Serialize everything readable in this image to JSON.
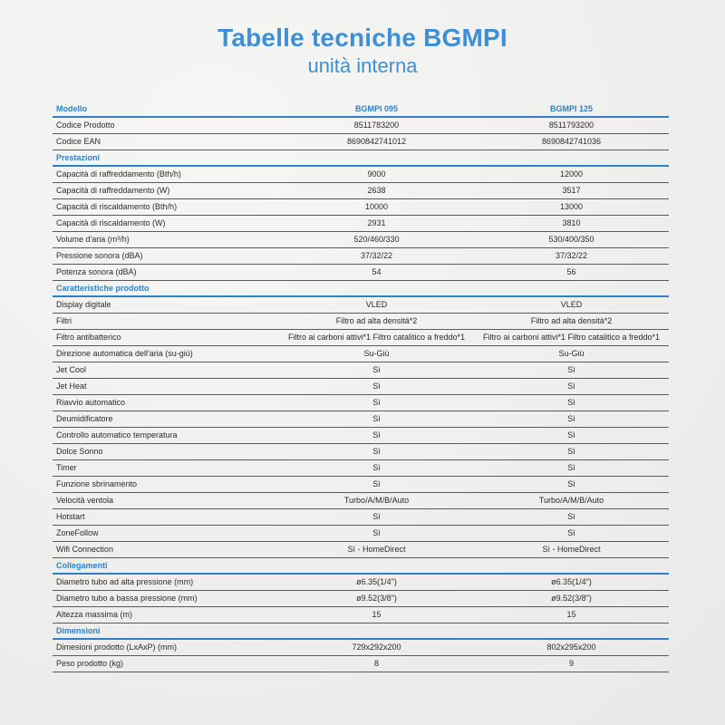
{
  "header": {
    "title": "Tabelle tecniche BGMPI",
    "subtitle": "unità interna"
  },
  "table": {
    "columns": [
      "Modello",
      "BGMPI 095",
      "BGMPI 125"
    ],
    "sections": [
      {
        "title": "",
        "rows": [
          {
            "label": "Codice Prodotto",
            "values": [
              "8511783200",
              "8511793200"
            ]
          },
          {
            "label": "Codice EAN",
            "values": [
              "8690842741012",
              "8690842741036"
            ]
          }
        ]
      },
      {
        "title": "Prestazioni",
        "rows": [
          {
            "label": "Capacità di raffreddamento (Bth/h)",
            "values": [
              "9000",
              "12000"
            ]
          },
          {
            "label": "Capacità di raffreddamento (W)",
            "values": [
              "2638",
              "3517"
            ]
          },
          {
            "label": "Capacità di riscaldamento (Bth/h)",
            "values": [
              "10000",
              "13000"
            ]
          },
          {
            "label": "Capacità di riscaldamento (W)",
            "values": [
              "2931",
              "3810"
            ]
          },
          {
            "label": "Volume d'aria (m³/h)",
            "values": [
              "520/460/330",
              "530/400/350"
            ]
          },
          {
            "label": "Pressione sonora (dBA)",
            "values": [
              "37/32/22",
              "37/32/22"
            ]
          },
          {
            "label": "Potenza sonora (dBA)",
            "values": [
              "54",
              "56"
            ]
          }
        ]
      },
      {
        "title": "Caratteristiche prodotto",
        "rows": [
          {
            "label": "Display digitale",
            "values": [
              "VLED",
              "VLED"
            ]
          },
          {
            "label": "Filtri",
            "values": [
              "Filtro ad alta densità*2",
              "Filtro ad alta densità*2"
            ]
          },
          {
            "label": "Filtro antibatterico",
            "values": [
              "Filtro ai carboni attivi*1 Filtro catalitico a freddo*1",
              "Filtro ai carboni attivi*1 Filtro catalitico a freddo*1"
            ]
          },
          {
            "label": "Direzione automatica dell'aria (su-giù)",
            "values": [
              "Su-Giù",
              "Su-Giù"
            ]
          },
          {
            "label": "Jet Cool",
            "values": [
              "Sì",
              "Sì"
            ]
          },
          {
            "label": "Jet Heat",
            "values": [
              "Sì",
              "Sì"
            ]
          },
          {
            "label": "Riavvio automatico",
            "values": [
              "Sì",
              "Sì"
            ]
          },
          {
            "label": "Deumidificatore",
            "values": [
              "Sì",
              "Sì"
            ]
          },
          {
            "label": "Controllo automatico temperatura",
            "values": [
              "Sì",
              "Sì"
            ]
          },
          {
            "label": "Dolce Sonno",
            "values": [
              "Sì",
              "Sì"
            ]
          },
          {
            "label": "Timer",
            "values": [
              "Sì",
              "Sì"
            ]
          },
          {
            "label": "Funzione sbrinamento",
            "values": [
              "Sì",
              "Sì"
            ]
          },
          {
            "label": "Velocità ventola",
            "values": [
              "Turbo/A/M/B/Auto",
              "Turbo/A/M/B/Auto"
            ]
          },
          {
            "label": "Hotstart",
            "values": [
              "Sì",
              "Sì"
            ]
          },
          {
            "label": "ZoneFollow",
            "values": [
              "Sì",
              "Sì"
            ]
          },
          {
            "label": "Wifi Connection",
            "values": [
              "Sì - HomeDirect",
              "Sì - HomeDirect"
            ]
          }
        ]
      },
      {
        "title": "Collegamenti",
        "rows": [
          {
            "label": "Diametro tubo ad alta pressione (mm)",
            "values": [
              "ø6.35(1/4\")",
              "ø6.35(1/4\")"
            ]
          },
          {
            "label": "Diametro tubo a bassa pressione (mm)",
            "values": [
              "ø9.52(3/8\")",
              "ø9.52(3/8\")"
            ]
          },
          {
            "label": "Altezza massima (m)",
            "values": [
              "15",
              "15"
            ]
          }
        ]
      },
      {
        "title": "Dimensioni",
        "rows": [
          {
            "label": "Dimesioni prodotto (LxAxP) (mm)",
            "values": [
              "729x292x200",
              "802x295x200"
            ]
          },
          {
            "label": "Peso prodotto (kg)",
            "values": [
              "8",
              "9"
            ]
          }
        ]
      }
    ]
  }
}
